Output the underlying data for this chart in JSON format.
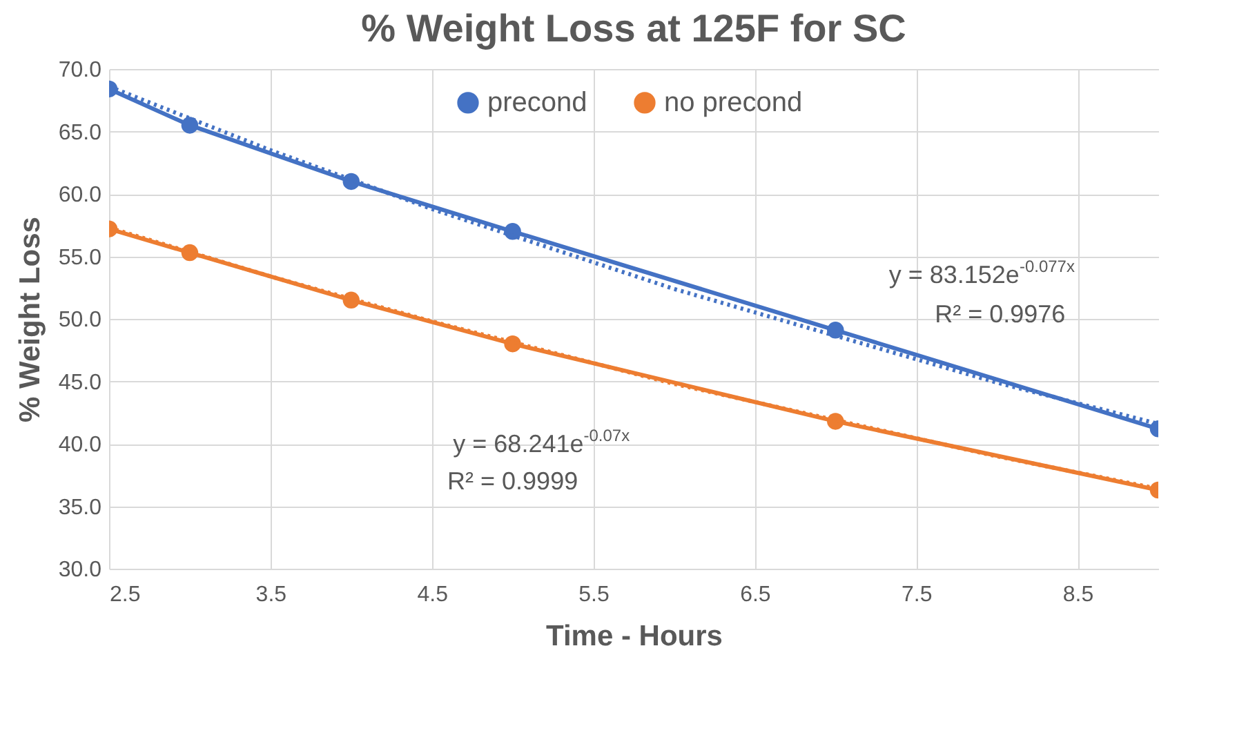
{
  "chart_data": {
    "type": "line",
    "title": "% Weight Loss at 125F for SC",
    "xlabel": "Time - Hours",
    "ylabel": "% Weight Loss",
    "x": [
      2.5,
      3,
      4,
      5,
      7,
      9
    ],
    "series": [
      {
        "name": "precond",
        "color": "#4472c4",
        "values": [
          68.4,
          65.5,
          61.0,
          57.0,
          49.1,
          41.2
        ]
      },
      {
        "name": "no precond",
        "color": "#ed7d31",
        "values": [
          57.2,
          55.3,
          51.5,
          48.0,
          41.8,
          36.3
        ]
      },
      {
        "type": "line",
        "color": "#4472c4",
        "line_style": "dotted",
        "marker": "none",
        "x": [
          2.5,
          3.5,
          4.5,
          6,
          8,
          9
        ],
        "values": [
          68.6,
          63.5,
          58.8,
          52.4,
          44.9,
          41.6
        ]
      },
      {
        "type": "line",
        "color": "#ed7d31",
        "line_style": "dotted",
        "marker": "none",
        "x": [
          2.5,
          3.5,
          4.5,
          6,
          8,
          9
        ],
        "values": [
          57.3,
          53.4,
          49.8,
          44.8,
          39.0,
          36.4
        ]
      }
    ],
    "xlim": [
      2.5,
      9
    ],
    "xticks": [
      2.5,
      3.5,
      4.5,
      5.5,
      6.5,
      7.5,
      8.5
    ],
    "ylim": [
      30,
      70
    ],
    "yticks": [
      {
        "value": 30,
        "label": "30.0"
      },
      {
        "value": 35,
        "label": "35.0"
      },
      {
        "value": 40,
        "label": "40.0"
      },
      {
        "value": 45,
        "label": "45.0"
      },
      {
        "value": 50,
        "label": "50.0"
      },
      {
        "value": 55,
        "label": "55.0"
      },
      {
        "value": 60,
        "label": "60.0"
      },
      {
        "value": 65,
        "label": "65.0"
      },
      {
        "value": 70,
        "label": "70.0"
      }
    ],
    "annotations": [
      "y = 83.152e$^{-0.077x}$",
      "R² = 0.9976",
      "y = 68.241e$^{-0.07x}$",
      "R² = 0.9999"
    ],
    "grid": true,
    "legend": "top",
    "marker": "circle",
    "line_style": "solid"
  }
}
